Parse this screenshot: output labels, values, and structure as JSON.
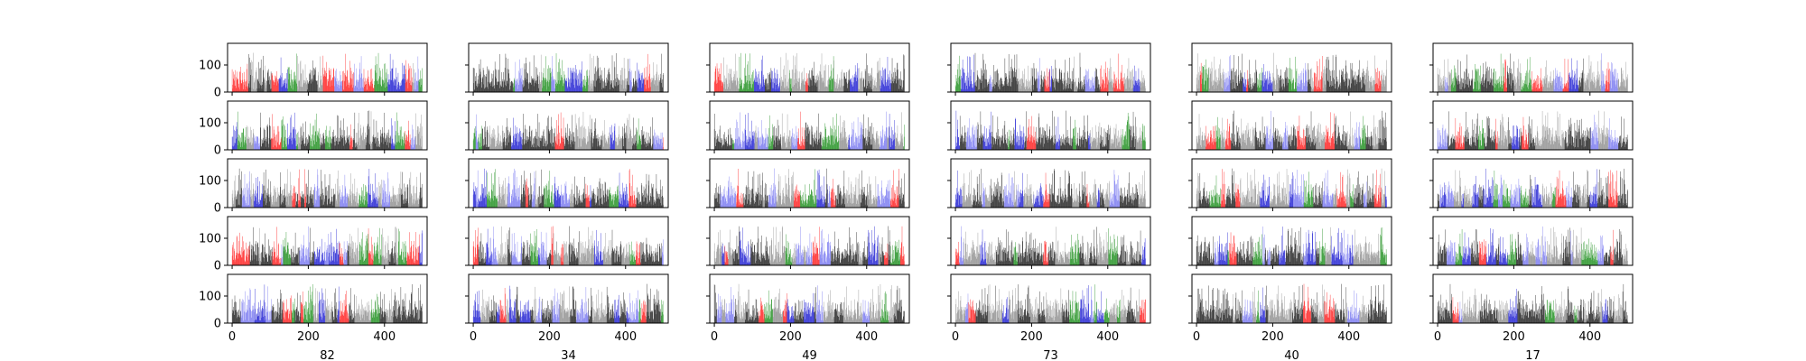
{
  "chart_data": {
    "type": "bar",
    "layout": {
      "rows": 5,
      "cols": 6
    },
    "column_labels": [
      "82",
      "34",
      "49",
      "73",
      "40",
      "17"
    ],
    "xlim": [
      -12,
      512
    ],
    "ylim": [
      0,
      180
    ],
    "xticks": [
      0,
      200,
      400
    ],
    "xtick_labels": [
      "0",
      "200",
      "400"
    ],
    "yticks": [
      0,
      100
    ],
    "ytick_labels": [
      "0",
      "100"
    ],
    "bar_count_per_panel": 500,
    "bar_colors": [
      "#000000",
      "#000000",
      "#000000",
      "#808080",
      "#808080",
      "#0000cc",
      "#6666ee",
      "#ff0000",
      "#008000"
    ],
    "grid": false,
    "legend": "none"
  }
}
